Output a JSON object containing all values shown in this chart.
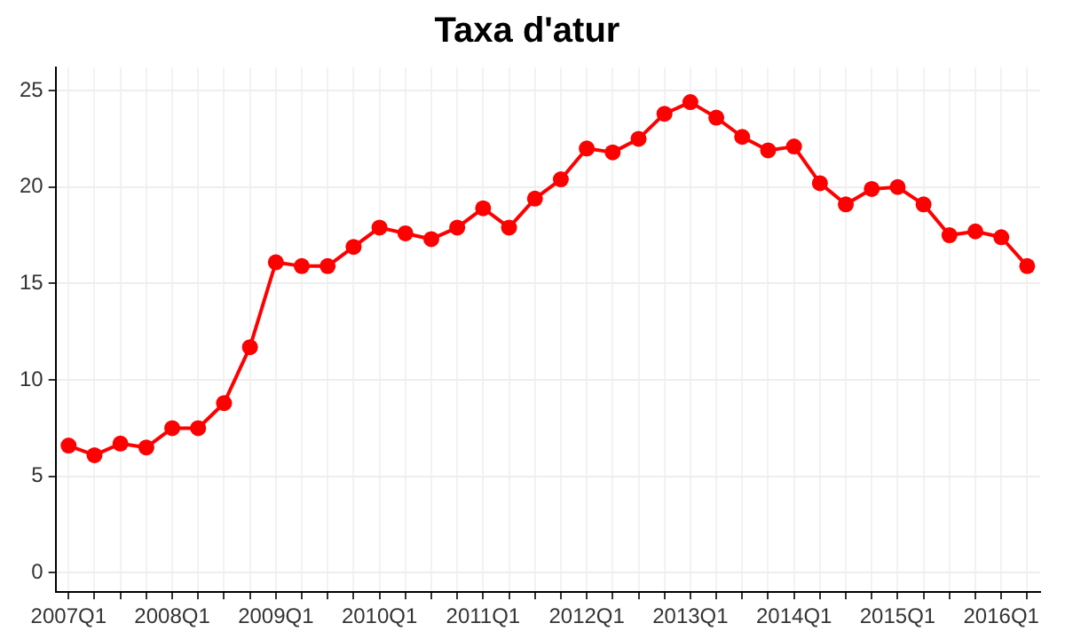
{
  "chart_data": {
    "type": "line",
    "title": "Taxa d'atur",
    "categories": [
      "2007Q1",
      null,
      null,
      null,
      "2008Q1",
      null,
      null,
      null,
      "2009Q1",
      null,
      null,
      null,
      "2010Q1",
      null,
      null,
      null,
      "2011Q1",
      null,
      null,
      null,
      "2012Q1",
      null,
      null,
      null,
      "2013Q1",
      null,
      null,
      null,
      "2014Q1",
      null,
      null,
      null,
      "2015Q1",
      null,
      null,
      null,
      "2016Q1",
      null
    ],
    "series": [
      {
        "color": "#ff0000",
        "values": [
          6.6,
          6.1,
          6.7,
          6.5,
          7.5,
          7.5,
          8.8,
          11.7,
          16.1,
          15.9,
          15.9,
          16.9,
          17.9,
          17.6,
          17.3,
          17.9,
          18.9,
          17.9,
          19.4,
          20.4,
          22.0,
          21.8,
          22.5,
          23.8,
          24.4,
          23.6,
          22.6,
          21.9,
          22.1,
          20.2,
          19.1,
          19.9,
          20.0,
          19.1,
          17.5,
          17.7,
          17.4,
          15.9
        ]
      }
    ],
    "ylim": [
      -1,
      26.2
    ],
    "yticks": [
      0,
      5,
      10,
      15,
      20,
      25
    ],
    "grid": true,
    "legend": false,
    "marker": "circle",
    "line_style": "solid"
  }
}
